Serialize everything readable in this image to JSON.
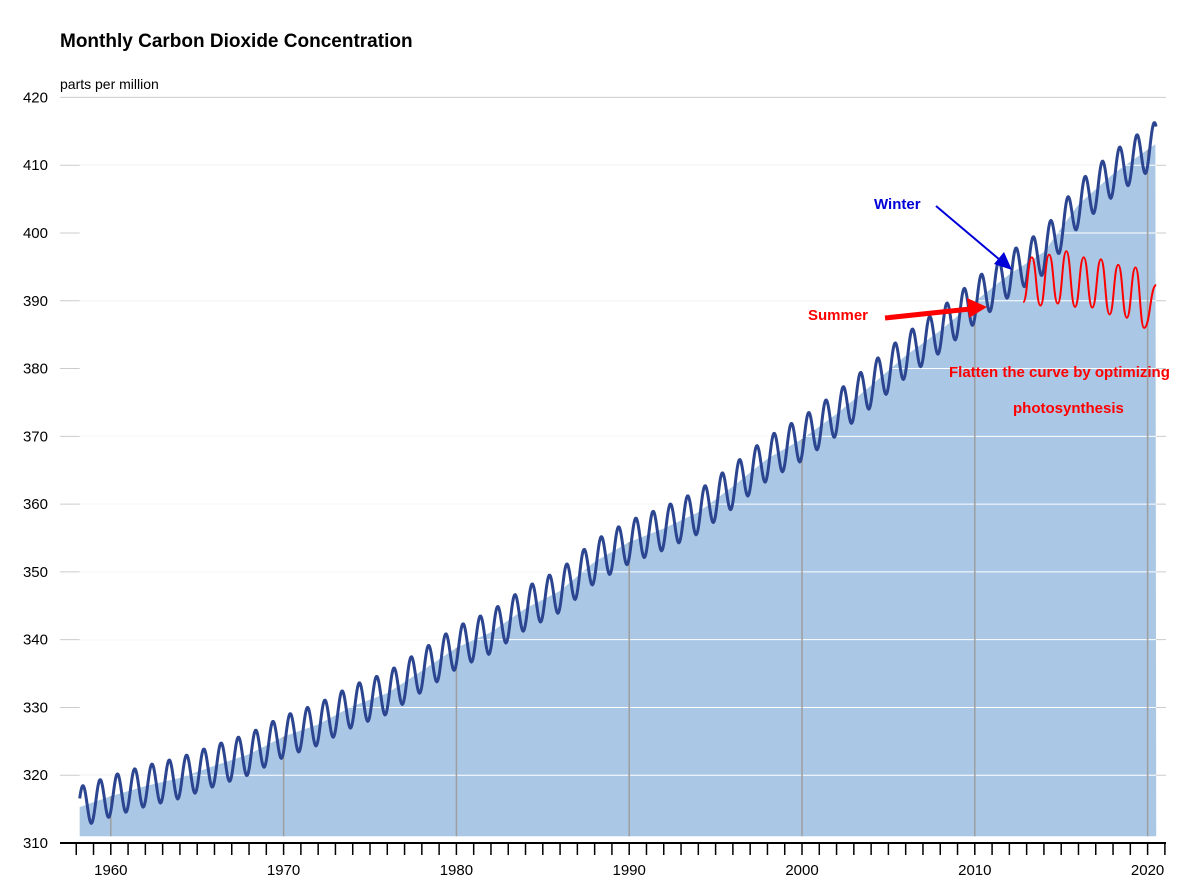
{
  "chart_data": {
    "type": "line",
    "title": "Monthly Carbon Dioxide Concentration",
    "ylabel": "parts per million",
    "xlabel": "",
    "xlim": [
      1958.2,
      2020.5
    ],
    "ylim": [
      310,
      420
    ],
    "yticks": [
      "310",
      "320",
      "330",
      "340",
      "350",
      "360",
      "370",
      "380",
      "390",
      "400",
      "410",
      "420"
    ],
    "xticks": [
      "1960",
      "1970",
      "1980",
      "1990",
      "2000",
      "2010",
      "2020"
    ],
    "grid": true,
    "colors": {
      "area": "#aac8e6",
      "line": "#2c4590",
      "annotation_red": "#ff0000",
      "annotation_blue": "#0000d8",
      "grid": "#cccccc"
    },
    "series": [
      {
        "x": [
          1958.2,
          1960,
          1962,
          1964,
          1966,
          1968,
          1970,
          1972,
          1974,
          1976,
          1978,
          1980,
          1982,
          1984,
          1986,
          1988,
          1990,
          1992,
          1994,
          1996,
          1998,
          2000,
          2002,
          2004,
          2006,
          2008,
          2010,
          2012,
          2014,
          2016,
          2018,
          2020.5
        ],
        "values": [
          315.3,
          316.9,
          318.4,
          319.6,
          321.4,
          323.1,
          325.7,
          327.5,
          330.2,
          332.1,
          335.4,
          338.8,
          341.1,
          344.6,
          347.2,
          351.5,
          354.4,
          356.4,
          358.8,
          362.6,
          366.7,
          369.6,
          373.3,
          377.5,
          381.9,
          385.6,
          389.9,
          393.9,
          397.2,
          404.2,
          408.7,
          413.2
        ],
        "seasonal_amplitude_start": 3.0,
        "seasonal_amplitude_end": 3.3
      },
      {
        "x": [
          2012.8,
          2013.3,
          2013.8,
          2014.3,
          2014.8,
          2015.3,
          2015.8,
          2016.3,
          2016.8,
          2017.3,
          2017.8,
          2018.3,
          2018.8,
          2019.3,
          2019.8,
          2020.5
        ],
        "values": [
          389.8,
          396.4,
          389.3,
          396.8,
          389.6,
          397.3,
          389.1,
          396.4,
          389.0,
          396.1,
          388.0,
          395.3,
          387.5,
          394.9,
          386.0,
          392.3
        ]
      }
    ],
    "annotations": {
      "winter": "Winter",
      "summer": "Summer",
      "note_line1": "Flatten the curve by optimizing",
      "note_line2": "photosynthesis"
    }
  }
}
